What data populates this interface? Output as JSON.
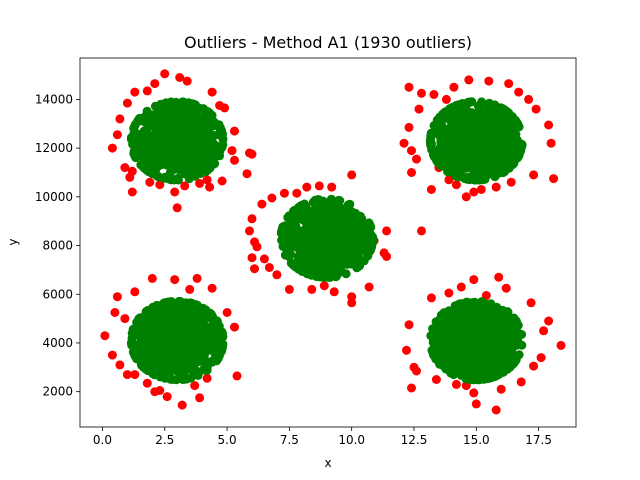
{
  "chart_data": {
    "type": "scatter",
    "title": "Outliers - Method A1 (1930 outliers)",
    "xlabel": "x",
    "ylabel": "y",
    "xlim": [
      -0.9,
      19.0
    ],
    "ylim": [
      550,
      15700
    ],
    "xticks": [
      0.0,
      2.5,
      5.0,
      7.5,
      10.0,
      12.5,
      15.0,
      17.5
    ],
    "xtick_labels": [
      "0.0",
      "2.5",
      "5.0",
      "7.5",
      "10.0",
      "12.5",
      "15.0",
      "17.5"
    ],
    "yticks": [
      2000,
      4000,
      6000,
      8000,
      10000,
      12000,
      14000
    ],
    "ytick_labels": [
      "2000",
      "4000",
      "6000",
      "8000",
      "10000",
      "12000",
      "14000"
    ],
    "grid": false,
    "legend": "none",
    "outlier_count": 1930,
    "clusters": [
      {
        "center_x": 3.0,
        "center_y": 12300,
        "spread_x": 0.8,
        "spread_y": 700
      },
      {
        "center_x": 15.0,
        "center_y": 12300,
        "spread_x": 0.8,
        "spread_y": 700
      },
      {
        "center_x": 9.0,
        "center_y": 8300,
        "spread_x": 0.8,
        "spread_y": 700
      },
      {
        "center_x": 3.0,
        "center_y": 4100,
        "spread_x": 0.8,
        "spread_y": 700
      },
      {
        "center_x": 15.0,
        "center_y": 4100,
        "spread_x": 0.8,
        "spread_y": 700
      }
    ],
    "series": [
      {
        "color": "#ff0000",
        "points": [
          [
            2.5,
            15050
          ],
          [
            3.1,
            14900
          ],
          [
            3.4,
            14750
          ],
          [
            2.1,
            14650
          ],
          [
            1.8,
            14350
          ],
          [
            1.3,
            14300
          ],
          [
            4.4,
            14300
          ],
          [
            4.7,
            13750
          ],
          [
            4.9,
            13650
          ],
          [
            1.0,
            13850
          ],
          [
            0.7,
            13200
          ],
          [
            0.6,
            12550
          ],
          [
            0.4,
            12000
          ],
          [
            5.3,
            12700
          ],
          [
            5.2,
            11900
          ],
          [
            6.0,
            11750
          ],
          [
            5.9,
            11800
          ],
          [
            5.3,
            11500
          ],
          [
            0.9,
            11200
          ],
          [
            1.2,
            11050
          ],
          [
            1.1,
            10800
          ],
          [
            1.9,
            10600
          ],
          [
            2.3,
            10500
          ],
          [
            3.3,
            10450
          ],
          [
            3.9,
            10550
          ],
          [
            4.2,
            10700
          ],
          [
            4.3,
            10400
          ],
          [
            4.8,
            10650
          ],
          [
            5.8,
            10950
          ],
          [
            1.2,
            10200
          ],
          [
            2.9,
            10200
          ],
          [
            3.0,
            9550
          ],
          [
            14.7,
            14800
          ],
          [
            15.5,
            14750
          ],
          [
            16.3,
            14650
          ],
          [
            14.1,
            14500
          ],
          [
            16.7,
            14300
          ],
          [
            12.8,
            14250
          ],
          [
            13.3,
            14200
          ],
          [
            13.8,
            14000
          ],
          [
            12.3,
            14500
          ],
          [
            17.1,
            14000
          ],
          [
            17.4,
            13600
          ],
          [
            12.7,
            13600
          ],
          [
            12.3,
            12850
          ],
          [
            12.1,
            12200
          ],
          [
            17.9,
            12950
          ],
          [
            18.0,
            12200
          ],
          [
            12.4,
            11900
          ],
          [
            12.6,
            11550
          ],
          [
            12.4,
            11000
          ],
          [
            13.5,
            11200
          ],
          [
            13.9,
            10700
          ],
          [
            14.2,
            10500
          ],
          [
            14.9,
            10200
          ],
          [
            15.2,
            10300
          ],
          [
            15.8,
            10400
          ],
          [
            16.4,
            10600
          ],
          [
            17.3,
            10900
          ],
          [
            18.1,
            10750
          ],
          [
            13.2,
            10300
          ],
          [
            14.6,
            10000
          ],
          [
            8.2,
            10400
          ],
          [
            8.7,
            10450
          ],
          [
            9.2,
            10400
          ],
          [
            10.0,
            10900
          ],
          [
            7.3,
            10150
          ],
          [
            6.8,
            9950
          ],
          [
            6.4,
            9700
          ],
          [
            7.8,
            10150
          ],
          [
            6.0,
            9100
          ],
          [
            5.9,
            8600
          ],
          [
            6.1,
            8150
          ],
          [
            6.2,
            7950
          ],
          [
            6.0,
            7500
          ],
          [
            6.1,
            7050
          ],
          [
            6.7,
            7100
          ],
          [
            7.0,
            6800
          ],
          [
            7.5,
            6200
          ],
          [
            8.4,
            6200
          ],
          [
            8.9,
            6350
          ],
          [
            9.3,
            6100
          ],
          [
            10.0,
            5900
          ],
          [
            10.0,
            5650
          ],
          [
            10.7,
            6300
          ],
          [
            11.3,
            7700
          ],
          [
            11.4,
            7550
          ],
          [
            12.8,
            8600
          ],
          [
            10.9,
            8200
          ],
          [
            11.4,
            8600
          ],
          [
            6.5,
            7450
          ],
          [
            2.0,
            6650
          ],
          [
            2.9,
            6600
          ],
          [
            3.8,
            6650
          ],
          [
            3.5,
            6200
          ],
          [
            1.3,
            6100
          ],
          [
            0.6,
            5900
          ],
          [
            0.5,
            5250
          ],
          [
            0.9,
            5000
          ],
          [
            4.4,
            6250
          ],
          [
            5.0,
            5250
          ],
          [
            5.3,
            4650
          ],
          [
            0.1,
            4300
          ],
          [
            0.4,
            3500
          ],
          [
            0.7,
            3100
          ],
          [
            1.0,
            2700
          ],
          [
            1.3,
            2700
          ],
          [
            1.8,
            2350
          ],
          [
            2.1,
            2000
          ],
          [
            2.6,
            1800
          ],
          [
            3.2,
            1450
          ],
          [
            3.9,
            1750
          ],
          [
            4.2,
            2550
          ],
          [
            5.4,
            2650
          ],
          [
            3.7,
            2250
          ],
          [
            2.3,
            2050
          ],
          [
            14.9,
            6600
          ],
          [
            15.9,
            6700
          ],
          [
            14.4,
            6300
          ],
          [
            13.9,
            6050
          ],
          [
            15.4,
            5950
          ],
          [
            13.2,
            5850
          ],
          [
            16.2,
            6250
          ],
          [
            17.2,
            5650
          ],
          [
            17.9,
            4900
          ],
          [
            17.7,
            4500
          ],
          [
            12.3,
            4750
          ],
          [
            12.2,
            3700
          ],
          [
            12.5,
            3000
          ],
          [
            12.6,
            2850
          ],
          [
            12.4,
            2150
          ],
          [
            13.4,
            2500
          ],
          [
            14.2,
            2300
          ],
          [
            14.6,
            2250
          ],
          [
            14.9,
            1950
          ],
          [
            15.0,
            1500
          ],
          [
            15.8,
            1250
          ],
          [
            16.8,
            2400
          ],
          [
            17.3,
            3050
          ],
          [
            17.6,
            3400
          ],
          [
            18.4,
            3900
          ],
          [
            16.0,
            2100
          ]
        ]
      }
    ]
  }
}
